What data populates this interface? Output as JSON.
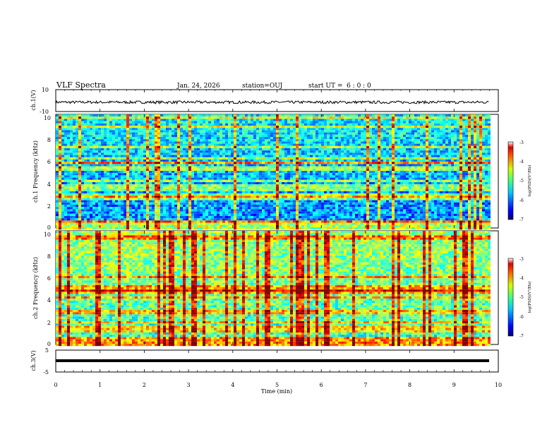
{
  "header": {
    "title": "VLF Spectra",
    "date": "Jan. 24, 2026",
    "station": "station=OUJ",
    "start_ut": "start UT =  6 : 0 : 0"
  },
  "chart_data": [
    {
      "type": "line",
      "name": "ch1-voltage",
      "ylabel": "ch.1(V)",
      "ylim": [
        -10,
        10
      ],
      "ytick_labels": [
        "10",
        "-10"
      ],
      "trace_level_v": -1.5,
      "noise_amplitude_v": 2.5,
      "color": "#000000"
    },
    {
      "type": "heatmap",
      "name": "ch1-spectrogram",
      "ylabel": "ch.1 Frequency (kHz)",
      "ylim": [
        0,
        10
      ],
      "ytick_labels": [
        "0",
        "2",
        "4",
        "6",
        "8",
        "10"
      ],
      "xlim_min": [
        0,
        9.83
      ],
      "colorbar": {
        "label": "log(PSD)(V²/Hz)",
        "tick_labels": [
          "-3",
          "-4",
          "-5",
          "-6",
          "-7"
        ],
        "range": [
          -7,
          -3
        ]
      }
    },
    {
      "type": "heatmap",
      "name": "ch2-spectrogram",
      "ylabel": "ch.2 Frequency (kHz)",
      "ylim": [
        0,
        10
      ],
      "ytick_labels": [
        "0",
        "2",
        "4",
        "6",
        "8",
        "10"
      ],
      "xlim_min": [
        0,
        9.83
      ],
      "colorbar": {
        "label": "log(PSD)(V²/Hz)",
        "tick_labels": [
          "-3",
          "-4",
          "-5",
          "-6",
          "-7"
        ],
        "range": [
          -7,
          -3
        ]
      }
    },
    {
      "type": "line",
      "name": "ch3-voltage",
      "ylabel": "ch.3(V)",
      "ylim": [
        -5,
        5
      ],
      "ytick_labels": [
        "5",
        "-5"
      ],
      "trace_level_v": -1.5,
      "color": "#000000"
    }
  ],
  "xaxis": {
    "label": "Time (min)",
    "range": [
      0,
      10
    ],
    "tick_labels": [
      "0",
      "1",
      "2",
      "3",
      "4",
      "5",
      "6",
      "7",
      "8",
      "9",
      "10"
    ]
  },
  "colors": {
    "spectrogram_low": "#0a14c8",
    "spectrogram_high": "#e61e1e",
    "background": "#ffffff"
  }
}
